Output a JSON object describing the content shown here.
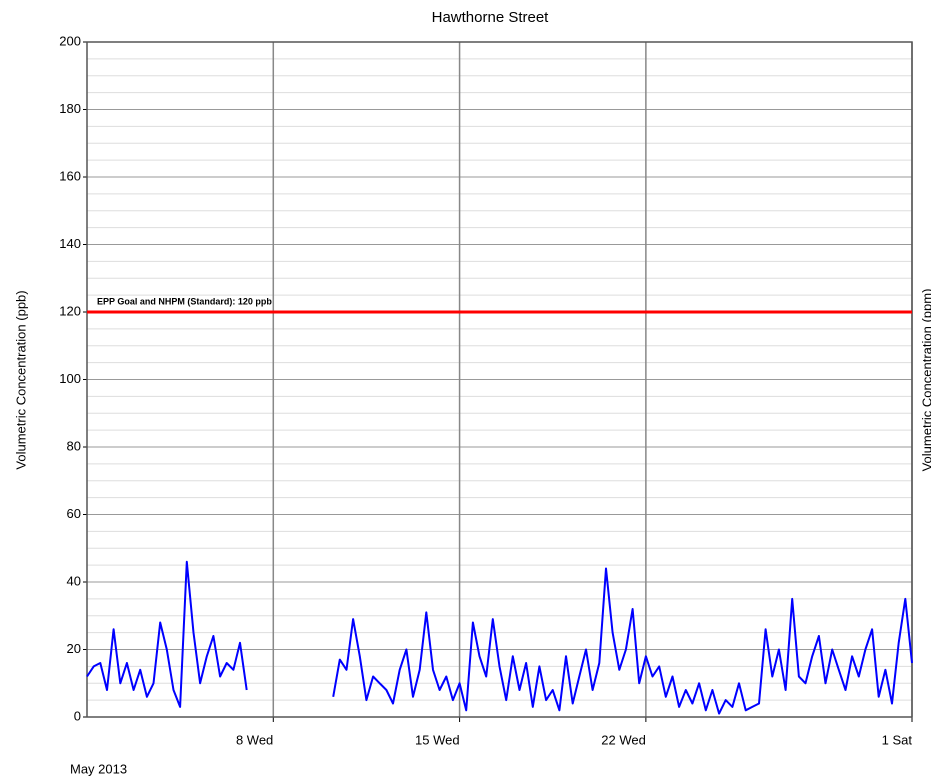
{
  "chart_data": {
    "type": "line",
    "title": "Hawthorne Street",
    "y_label": "Volumetric Concentration (ppb)",
    "y2_label": "Volumetric Concentration (ppm)",
    "x_period_label": "May 2013",
    "xlim": [
      1,
      32
    ],
    "xticks": [
      {
        "value": 8,
        "label": "8 Wed"
      },
      {
        "value": 15,
        "label": "15 Wed"
      },
      {
        "value": 22,
        "label": "22 Wed"
      },
      {
        "value": 32,
        "label": "1 Sat"
      }
    ],
    "ylim": [
      0,
      200
    ],
    "yticks": [
      0,
      20,
      40,
      60,
      80,
      100,
      120,
      140,
      160,
      180,
      200
    ],
    "grid": true,
    "minor_grid": true,
    "reference": {
      "value": 120,
      "label": "EPP Goal and NHPM (Standard): 120 ppb",
      "color": "#ff0000"
    },
    "x": [
      1,
      1.25,
      1.5,
      1.75,
      2,
      2.25,
      2.5,
      2.75,
      3,
      3.25,
      3.5,
      3.75,
      4,
      4.25,
      4.5,
      4.75,
      5,
      5.25,
      5.5,
      5.75,
      6,
      6.25,
      6.5,
      6.75,
      7,
      7.25,
      7.5,
      7.75,
      8,
      8.25,
      8.5,
      8.75,
      9,
      9.25,
      9.5,
      9.75,
      10,
      10.25,
      10.5,
      10.75,
      11,
      11.25,
      11.5,
      11.75,
      12,
      12.25,
      12.5,
      12.75,
      13,
      13.25,
      13.5,
      13.75,
      14,
      14.25,
      14.5,
      14.75,
      15,
      15.25,
      15.5,
      15.75,
      16,
      16.25,
      16.5,
      16.75,
      17,
      17.25,
      17.5,
      17.75,
      18,
      18.25,
      18.5,
      18.75,
      19,
      19.25,
      19.5,
      19.75,
      20,
      20.25,
      20.5,
      20.75,
      21,
      21.25,
      21.5,
      21.75,
      22,
      22.25,
      22.5,
      22.75,
      23,
      23.25,
      23.5,
      23.75,
      24,
      24.25,
      24.5,
      24.75,
      25,
      25.25,
      25.5,
      25.75,
      26,
      26.25,
      26.5,
      26.75,
      27,
      27.25,
      27.5,
      27.75,
      28,
      28.25,
      28.5,
      28.75,
      29,
      29.25,
      29.5,
      29.75,
      30,
      30.25,
      30.5,
      30.75,
      31,
      31.25,
      31.5,
      31.75,
      32
    ],
    "series": [
      {
        "name": "Hawthorne Street",
        "color": "#0000ff",
        "values": [
          12,
          15,
          16,
          8,
          26,
          10,
          16,
          8,
          14,
          6,
          10,
          28,
          20,
          8,
          3,
          46,
          25,
          10,
          18,
          24,
          12,
          16,
          14,
          22,
          8,
          null,
          null,
          null,
          null,
          null,
          null,
          null,
          null,
          null,
          null,
          null,
          null,
          6,
          17,
          14,
          29,
          18,
          5,
          12,
          10,
          8,
          4,
          14,
          20,
          6,
          14,
          31,
          14,
          8,
          12,
          5,
          10,
          2,
          28,
          18,
          12,
          29,
          15,
          5,
          18,
          8,
          16,
          3,
          15,
          5,
          8,
          2,
          18,
          4,
          12,
          20,
          8,
          16,
          44,
          25,
          14,
          20,
          32,
          10,
          18,
          12,
          15,
          6,
          12,
          3,
          8,
          4,
          10,
          2,
          8,
          1,
          5,
          3,
          10,
          2,
          3,
          4,
          26,
          12,
          20,
          8,
          35,
          12,
          10,
          18,
          24,
          10,
          20,
          14,
          8,
          18,
          12,
          20,
          26,
          6,
          14,
          4,
          22,
          35,
          16
        ]
      }
    ]
  }
}
